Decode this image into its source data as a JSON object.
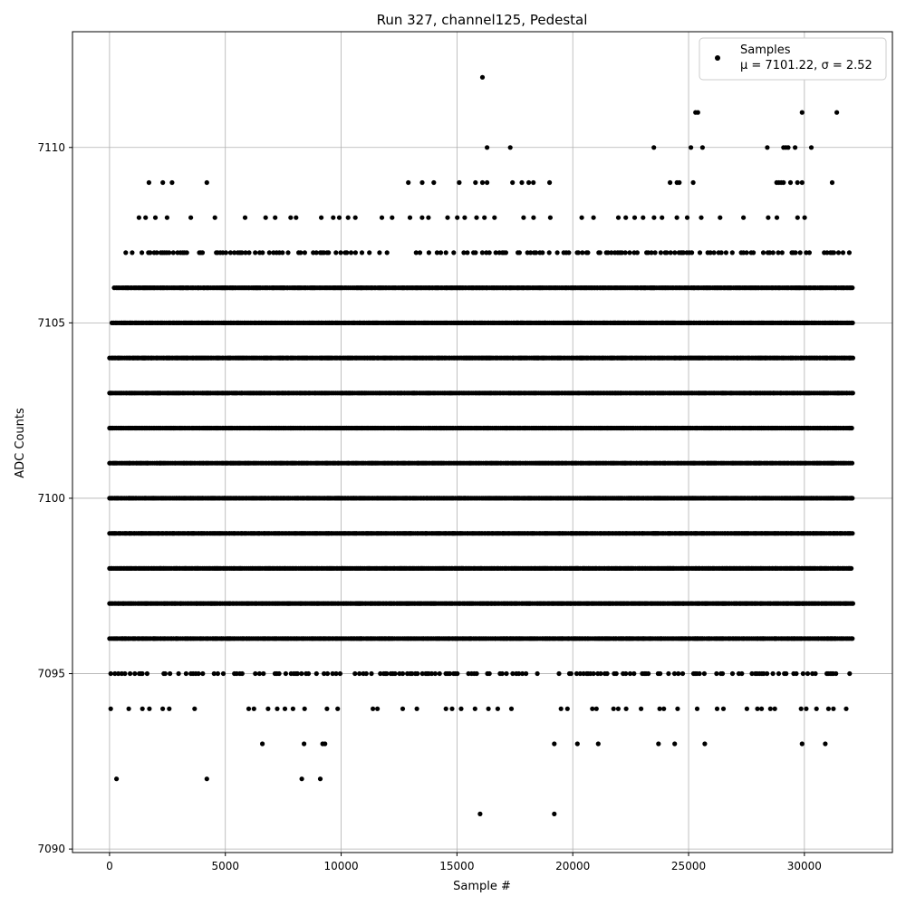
{
  "chart_data": {
    "type": "scatter",
    "title": "Run 327, channel125, Pedestal",
    "xlabel": "Sample #",
    "ylabel": "ADC Counts",
    "xlim": [
      -1600,
      33800
    ],
    "ylim": [
      7089.9,
      7113.3
    ],
    "xticks": [
      0,
      5000,
      10000,
      15000,
      20000,
      25000,
      30000
    ],
    "xtick_labels": [
      "0",
      "5000",
      "10000",
      "15000",
      "20000",
      "25000",
      "30000"
    ],
    "yticks": [
      7090,
      7095,
      7100,
      7105,
      7110
    ],
    "ytick_labels": [
      "7090",
      "7095",
      "7100",
      "7105",
      "7110"
    ],
    "grid": true,
    "legend_position": "top-right",
    "legend": {
      "name": "Samples",
      "stats": "μ = 7101.22, σ = 2.52"
    },
    "marker_color": "#000000",
    "n_samples": 32100,
    "series": [
      {
        "name": "Samples",
        "levels": [
          {
            "y": 7096,
            "x_start": 0,
            "x_end": 32100,
            "density": "dense"
          },
          {
            "y": 7097,
            "x_start": 0,
            "x_end": 32100,
            "density": "dense"
          },
          {
            "y": 7098,
            "x_start": 0,
            "x_end": 32100,
            "density": "dense"
          },
          {
            "y": 7099,
            "x_start": 0,
            "x_end": 32100,
            "density": "dense"
          },
          {
            "y": 7100,
            "x_start": 0,
            "x_end": 32100,
            "density": "dense"
          },
          {
            "y": 7101,
            "x_start": 0,
            "x_end": 32100,
            "density": "dense"
          },
          {
            "y": 7102,
            "x_start": 0,
            "x_end": 32100,
            "density": "dense"
          },
          {
            "y": 7103,
            "x_start": 0,
            "x_end": 32100,
            "density": "dense"
          },
          {
            "y": 7104,
            "x_start": 0,
            "x_end": 32100,
            "density": "dense"
          },
          {
            "y": 7105,
            "x_start": 100,
            "x_end": 32100,
            "density": "dense"
          },
          {
            "y": 7106,
            "x_start": 200,
            "x_end": 32100,
            "density": "dense"
          },
          {
            "y": 7107,
            "x_start": 700,
            "x_end": 32100,
            "density": "medium"
          },
          {
            "y": 7095,
            "x_start": 50,
            "x_end": 32100,
            "density": "medium"
          },
          {
            "y": 7108,
            "x_start": 200,
            "x_end": 31500,
            "density": "sparse"
          },
          {
            "y": 7094,
            "x_start": 50,
            "x_end": 31900,
            "density": "sparse"
          }
        ],
        "points": [
          {
            "x": 300,
            "y": 7092
          },
          {
            "x": 4200,
            "y": 7092
          },
          {
            "x": 8300,
            "y": 7092
          },
          {
            "x": 9100,
            "y": 7092
          },
          {
            "x": 6600,
            "y": 7093
          },
          {
            "x": 8400,
            "y": 7093
          },
          {
            "x": 9200,
            "y": 7093
          },
          {
            "x": 9300,
            "y": 7093
          },
          {
            "x": 19200,
            "y": 7093
          },
          {
            "x": 20200,
            "y": 7093
          },
          {
            "x": 21100,
            "y": 7093
          },
          {
            "x": 23700,
            "y": 7093
          },
          {
            "x": 24400,
            "y": 7093
          },
          {
            "x": 25700,
            "y": 7093
          },
          {
            "x": 29900,
            "y": 7093
          },
          {
            "x": 30900,
            "y": 7093
          },
          {
            "x": 16000,
            "y": 7091
          },
          {
            "x": 19200,
            "y": 7091
          },
          {
            "x": 1700,
            "y": 7109
          },
          {
            "x": 2300,
            "y": 7109
          },
          {
            "x": 2700,
            "y": 7109
          },
          {
            "x": 4200,
            "y": 7109
          },
          {
            "x": 12900,
            "y": 7109
          },
          {
            "x": 13500,
            "y": 7109
          },
          {
            "x": 14000,
            "y": 7109
          },
          {
            "x": 15100,
            "y": 7109
          },
          {
            "x": 15800,
            "y": 7109
          },
          {
            "x": 16100,
            "y": 7109
          },
          {
            "x": 16300,
            "y": 7109
          },
          {
            "x": 17400,
            "y": 7109
          },
          {
            "x": 17800,
            "y": 7109
          },
          {
            "x": 18100,
            "y": 7109
          },
          {
            "x": 18300,
            "y": 7109
          },
          {
            "x": 19000,
            "y": 7109
          },
          {
            "x": 24200,
            "y": 7109
          },
          {
            "x": 24500,
            "y": 7109
          },
          {
            "x": 24600,
            "y": 7109
          },
          {
            "x": 25200,
            "y": 7109
          },
          {
            "x": 28800,
            "y": 7109
          },
          {
            "x": 28900,
            "y": 7109
          },
          {
            "x": 29000,
            "y": 7109
          },
          {
            "x": 29100,
            "y": 7109
          },
          {
            "x": 29400,
            "y": 7109
          },
          {
            "x": 29700,
            "y": 7109
          },
          {
            "x": 29900,
            "y": 7109
          },
          {
            "x": 31200,
            "y": 7109
          },
          {
            "x": 16300,
            "y": 7110
          },
          {
            "x": 17300,
            "y": 7110
          },
          {
            "x": 23500,
            "y": 7110
          },
          {
            "x": 25100,
            "y": 7110
          },
          {
            "x": 25600,
            "y": 7110
          },
          {
            "x": 28400,
            "y": 7110
          },
          {
            "x": 29100,
            "y": 7110
          },
          {
            "x": 29200,
            "y": 7110
          },
          {
            "x": 29300,
            "y": 7110
          },
          {
            "x": 29600,
            "y": 7110
          },
          {
            "x": 30300,
            "y": 7110
          },
          {
            "x": 25300,
            "y": 7111
          },
          {
            "x": 25400,
            "y": 7111
          },
          {
            "x": 29900,
            "y": 7111
          },
          {
            "x": 31400,
            "y": 7111
          },
          {
            "x": 16100,
            "y": 7112
          }
        ]
      }
    ]
  }
}
